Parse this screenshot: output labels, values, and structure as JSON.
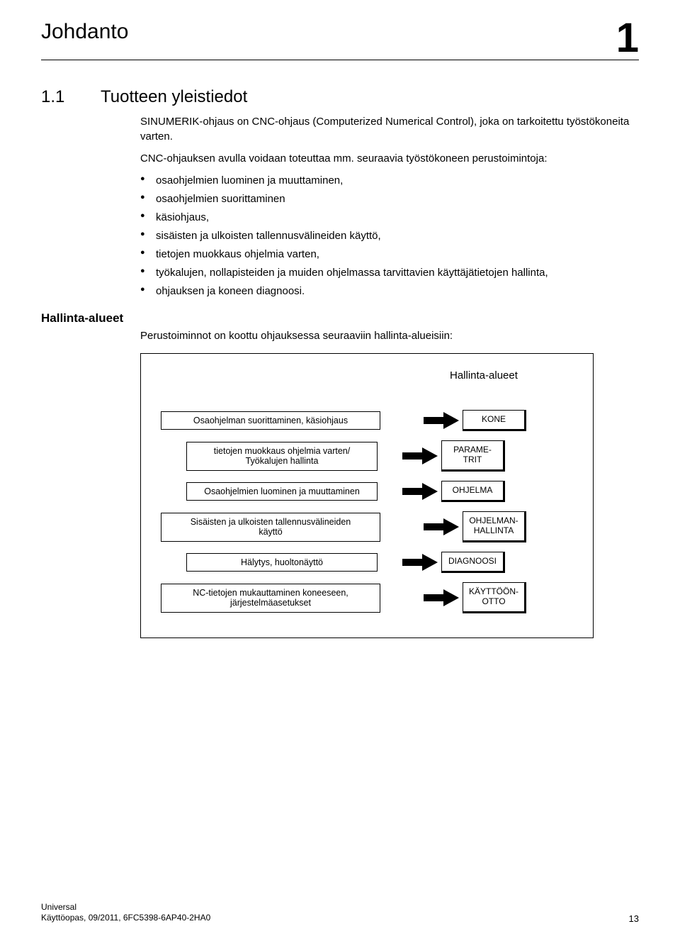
{
  "chapter": {
    "title": "Johdanto",
    "number": "1"
  },
  "section": {
    "number": "1.1",
    "title": "Tuotteen yleistiedot"
  },
  "intro_p1": "SINUMERIK-ohjaus on CNC-ohjaus (Computerized Numerical Control), joka on tarkoitettu työstökoneita varten.",
  "intro_p2": "CNC-ohjauksen avulla voidaan toteuttaa mm. seuraavia työstökoneen perustoimintoja:",
  "bullets": [
    "osaohjelmien luominen ja muuttaminen,",
    "osaohjelmien suorittaminen",
    "käsiohjaus,",
    "sisäisten ja ulkoisten tallennusvälineiden käyttö,",
    "tietojen muokkaus ohjelmia varten,",
    "työkalujen, nollapisteiden ja muiden ohjelmassa tarvittavien käyttäjätietojen hallinta,",
    "ohjauksen ja koneen diagnoosi."
  ],
  "subsection": {
    "heading": "Hallinta-alueet",
    "lead": "Perustoiminnot on koottu ohjauksessa seuraaviin hallinta-alueisiin:"
  },
  "diagram": {
    "right_title": "Hallinta-alueet",
    "arrow_fill": "#000000",
    "rows": [
      {
        "left": "Osaohjelman suorittaminen, käsiohjaus",
        "right": "KONE",
        "indent": "w0",
        "spacer": "a"
      },
      {
        "left": "tietojen muokkaus ohjelmia varten/\nTyökalujen hallinta",
        "right": "PARAME-\nTRIT",
        "indent": "w1",
        "spacer": "b"
      },
      {
        "left": "Osaohjelmien luominen ja muuttaminen",
        "right": "OHJELMA",
        "indent": "w1",
        "spacer": "b"
      },
      {
        "left": "Sisäisten ja ulkoisten tallennusvälineiden\nkäyttö",
        "right": "OHJELMAN-\nHALLINTA",
        "indent": "w0",
        "spacer": "a"
      },
      {
        "left": "Hälytys, huoltonäyttö",
        "right": "DIAGNOOSI",
        "indent": "w1",
        "spacer": "b"
      },
      {
        "left": "NC-tietojen mukauttaminen koneeseen,\njärjestelmäasetukset",
        "right": "KÄYTTÖÖN-\nOTTO",
        "indent": "w0",
        "spacer": "a"
      }
    ]
  },
  "footer": {
    "line1": "Universal",
    "line2": "Käyttöopas, 09/2011, 6FC5398-6AP40-2HA0",
    "page": "13"
  }
}
